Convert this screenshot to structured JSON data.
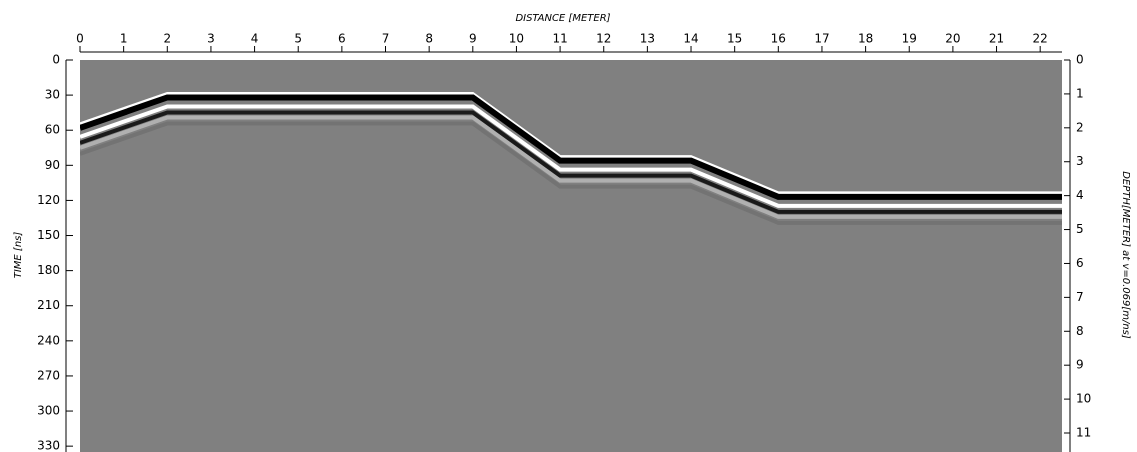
{
  "chart_data": {
    "type": "radargram",
    "x_label": "DISTANCE [METER]",
    "y_label": "TIME [ns]",
    "y2_label": "DEPTH[METER] at v=0.069[m/ns]",
    "xlim": [
      0,
      22.5
    ],
    "xticks": [
      0,
      1,
      2,
      3,
      4,
      5,
      6,
      7,
      8,
      9,
      10,
      11,
      12,
      13,
      14,
      15,
      16,
      17,
      18,
      19,
      20,
      21,
      22
    ],
    "ylim": [
      0,
      335
    ],
    "yticks": [
      0,
      30,
      60,
      90,
      120,
      150,
      180,
      210,
      240,
      270,
      300,
      330
    ],
    "y2lim": [
      0,
      11.56
    ],
    "y2ticks": [
      0,
      1,
      2,
      3,
      4,
      5,
      6,
      7,
      8,
      9,
      10,
      11
    ],
    "background": "#808080",
    "series": [
      {
        "color": "#000000",
        "x": [
          0,
          2,
          9,
          11,
          14,
          16,
          22.5
        ],
        "values": [
          58,
          32,
          32,
          86,
          86,
          117,
          117
        ]
      }
    ]
  }
}
